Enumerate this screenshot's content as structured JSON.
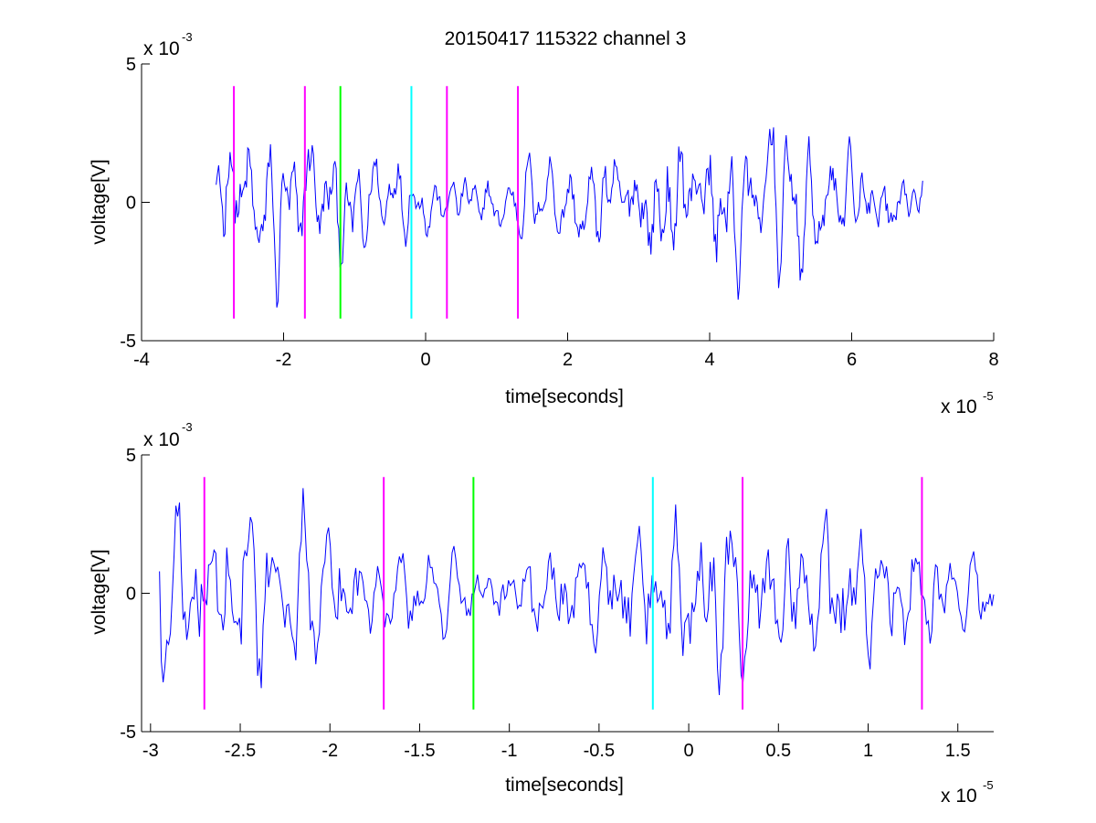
{
  "figure": {
    "title": "20150417 115322 channel 3",
    "background": "#ffffff"
  },
  "chart_data": [
    {
      "type": "line",
      "title": "20150417 115322 channel 3",
      "xlabel": "time[seconds]",
      "ylabel": "voltage[V]",
      "x_exponent_label": "x 10",
      "x_exponent_power": "-5",
      "y_exponent_label": "x 10",
      "y_exponent_power": "-3",
      "xlim": [
        -4,
        8
      ],
      "ylim": [
        -5,
        5
      ],
      "xticks": [
        -4,
        -2,
        0,
        2,
        4,
        6,
        8
      ],
      "xtick_labels": [
        "-4",
        "-2",
        "0",
        "2",
        "4",
        "6",
        "8"
      ],
      "yticks": [
        -5,
        0,
        5
      ],
      "ytick_labels": [
        "-5",
        "0",
        "5"
      ],
      "grid": false,
      "series_color": "#0000ff",
      "signal": {
        "x_start": -2.95,
        "x_end": 7.0,
        "num_points": 560,
        "peak_abs": 3.8
      },
      "markers": [
        {
          "x": -2.7,
          "color": "#ff00ff",
          "y_range": [
            -4.2,
            4.2
          ]
        },
        {
          "x": -1.7,
          "color": "#ff00ff",
          "y_range": [
            -4.2,
            4.2
          ]
        },
        {
          "x": -1.2,
          "color": "#00ff00",
          "y_range": [
            -4.2,
            4.2
          ]
        },
        {
          "x": -0.2,
          "color": "#00ffff",
          "y_range": [
            -4.2,
            4.2
          ]
        },
        {
          "x": 0.3,
          "color": "#ff00ff",
          "y_range": [
            -4.2,
            4.2
          ]
        },
        {
          "x": 1.3,
          "color": "#ff00ff",
          "y_range": [
            -4.2,
            4.2
          ]
        }
      ]
    },
    {
      "type": "line",
      "xlabel": "time[seconds]",
      "ylabel": "voltage[V]",
      "x_exponent_label": "x 10",
      "x_exponent_power": "-5",
      "y_exponent_label": "x 10",
      "y_exponent_power": "-3",
      "xlim": [
        -3.05,
        1.7
      ],
      "ylim": [
        -5,
        5
      ],
      "xticks": [
        -3,
        -2.5,
        -2,
        -1.5,
        -1,
        -0.5,
        0,
        0.5,
        1,
        1.5
      ],
      "xtick_labels": [
        "-3",
        "-2.5",
        "-2",
        "-1.5",
        "-1",
        "-0.5",
        "0",
        "0.5",
        "1",
        "1.5"
      ],
      "yticks": [
        -5,
        0,
        5
      ],
      "ytick_labels": [
        "-5",
        "0",
        "5"
      ],
      "grid": false,
      "series_color": "#0000ff",
      "signal": {
        "x_start": -2.95,
        "x_end": 1.7,
        "num_points": 460,
        "peak_abs": 3.8
      },
      "markers": [
        {
          "x": -2.7,
          "color": "#ff00ff",
          "y_range": [
            -4.2,
            4.2
          ]
        },
        {
          "x": -1.7,
          "color": "#ff00ff",
          "y_range": [
            -4.2,
            4.2
          ]
        },
        {
          "x": -1.2,
          "color": "#00ff00",
          "y_range": [
            -4.2,
            4.2
          ]
        },
        {
          "x": -0.2,
          "color": "#00ffff",
          "y_range": [
            -4.2,
            4.2
          ]
        },
        {
          "x": 0.3,
          "color": "#ff00ff",
          "y_range": [
            -4.2,
            4.2
          ]
        },
        {
          "x": 1.3,
          "color": "#ff00ff",
          "y_range": [
            -4.2,
            4.2
          ]
        }
      ]
    }
  ]
}
